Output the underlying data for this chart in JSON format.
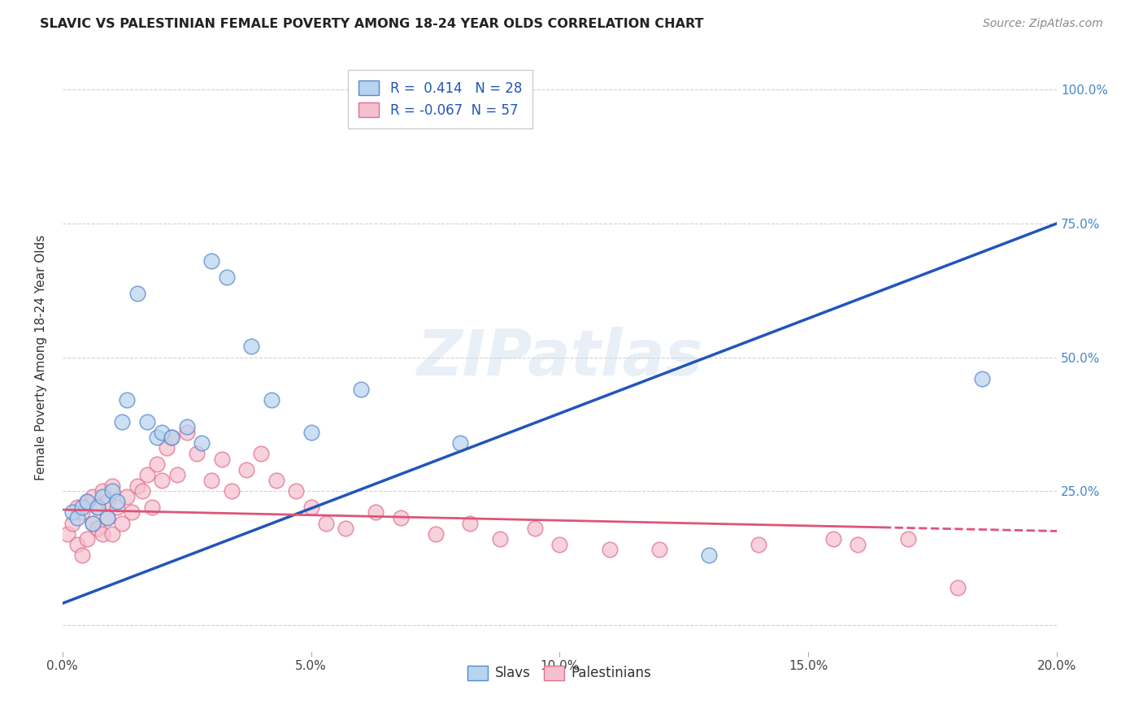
{
  "title": "SLAVIC VS PALESTINIAN FEMALE POVERTY AMONG 18-24 YEAR OLDS CORRELATION CHART",
  "source": "Source: ZipAtlas.com",
  "ylabel": "Female Poverty Among 18-24 Year Olds",
  "xlim": [
    0.0,
    0.2
  ],
  "ylim": [
    -0.05,
    1.05
  ],
  "slavs_R": 0.414,
  "slavs_N": 28,
  "palestinians_R": -0.067,
  "palestinians_N": 57,
  "slav_color": "#b8d4ee",
  "slav_edge_color": "#5588cc",
  "slav_line_color": "#2255bb",
  "pal_color": "#f5c0ce",
  "pal_edge_color": "#e07090",
  "pal_line_color": "#dd5577",
  "background": "#ffffff",
  "grid_color": "#cccccc",
  "slavs_x": [
    0.002,
    0.003,
    0.004,
    0.005,
    0.006,
    0.007,
    0.008,
    0.009,
    0.01,
    0.011,
    0.012,
    0.013,
    0.015,
    0.017,
    0.019,
    0.02,
    0.022,
    0.025,
    0.028,
    0.03,
    0.033,
    0.038,
    0.042,
    0.05,
    0.06,
    0.08,
    0.13,
    0.185
  ],
  "slavs_y": [
    0.21,
    0.2,
    0.22,
    0.23,
    0.19,
    0.22,
    0.24,
    0.2,
    0.25,
    0.23,
    0.38,
    0.42,
    0.62,
    0.38,
    0.35,
    0.36,
    0.35,
    0.37,
    0.34,
    0.68,
    0.65,
    0.52,
    0.42,
    0.36,
    0.44,
    0.34,
    0.13,
    0.46
  ],
  "pals_x": [
    0.001,
    0.002,
    0.003,
    0.003,
    0.004,
    0.004,
    0.005,
    0.005,
    0.006,
    0.006,
    0.007,
    0.007,
    0.008,
    0.008,
    0.009,
    0.009,
    0.01,
    0.01,
    0.011,
    0.012,
    0.013,
    0.014,
    0.015,
    0.016,
    0.017,
    0.018,
    0.019,
    0.02,
    0.021,
    0.022,
    0.023,
    0.025,
    0.027,
    0.03,
    0.032,
    0.034,
    0.037,
    0.04,
    0.043,
    0.047,
    0.05,
    0.053,
    0.057,
    0.063,
    0.068,
    0.075,
    0.082,
    0.088,
    0.095,
    0.1,
    0.11,
    0.12,
    0.14,
    0.155,
    0.16,
    0.17,
    0.18
  ],
  "pals_y": [
    0.17,
    0.19,
    0.15,
    0.22,
    0.13,
    0.21,
    0.16,
    0.23,
    0.19,
    0.24,
    0.18,
    0.22,
    0.17,
    0.25,
    0.2,
    0.23,
    0.17,
    0.26,
    0.22,
    0.19,
    0.24,
    0.21,
    0.26,
    0.25,
    0.28,
    0.22,
    0.3,
    0.27,
    0.33,
    0.35,
    0.28,
    0.36,
    0.32,
    0.27,
    0.31,
    0.25,
    0.29,
    0.32,
    0.27,
    0.25,
    0.22,
    0.19,
    0.18,
    0.21,
    0.2,
    0.17,
    0.19,
    0.16,
    0.18,
    0.15,
    0.14,
    0.14,
    0.15,
    0.16,
    0.15,
    0.16,
    0.07
  ],
  "slav_line_x0": 0.0,
  "slav_line_y0": 0.04,
  "slav_line_x1": 0.2,
  "slav_line_y1": 0.75,
  "pal_line_x0": 0.0,
  "pal_line_y0": 0.215,
  "pal_line_x1": 0.2,
  "pal_line_y1": 0.175,
  "yticks": [
    0.0,
    0.25,
    0.5,
    0.75,
    1.0
  ],
  "ytick_labels_right": [
    "",
    "25.0%",
    "50.0%",
    "75.0%",
    "100.0%"
  ],
  "xticks": [
    0.0,
    0.05,
    0.1,
    0.15,
    0.2
  ],
  "xtick_labels": [
    "0.0%",
    "5.0%",
    "10.0%",
    "15.0%",
    "20.0%"
  ]
}
